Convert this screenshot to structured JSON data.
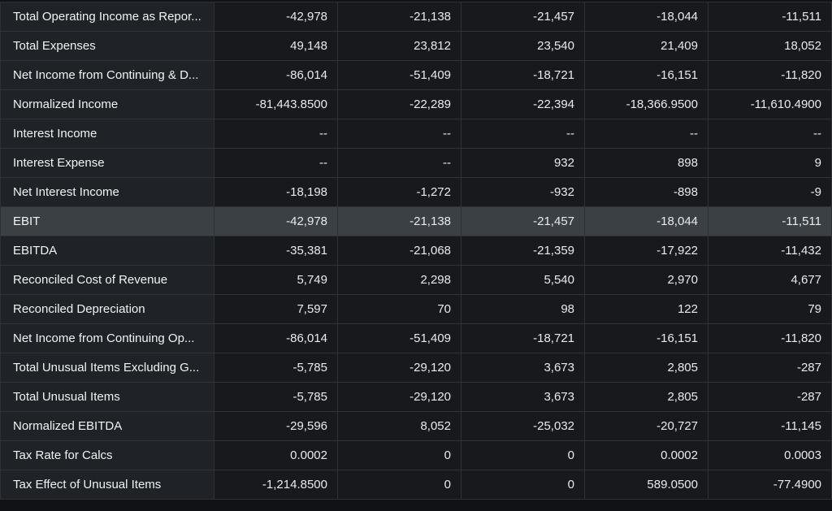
{
  "rows": [
    {
      "label": "Total Operating Income as Repor...",
      "values": [
        "-42,978",
        "-21,138",
        "-21,457",
        "-18,044",
        "-11,511"
      ],
      "highlight": false
    },
    {
      "label": "Total Expenses",
      "values": [
        "49,148",
        "23,812",
        "23,540",
        "21,409",
        "18,052"
      ],
      "highlight": false
    },
    {
      "label": "Net Income from Continuing & D...",
      "values": [
        "-86,014",
        "-51,409",
        "-18,721",
        "-16,151",
        "-11,820"
      ],
      "highlight": false
    },
    {
      "label": "Normalized Income",
      "values": [
        "-81,443.8500",
        "-22,289",
        "-22,394",
        "-18,366.9500",
        "-11,610.4900"
      ],
      "highlight": false
    },
    {
      "label": "Interest Income",
      "values": [
        "--",
        "--",
        "--",
        "--",
        "--"
      ],
      "highlight": false
    },
    {
      "label": "Interest Expense",
      "values": [
        "--",
        "--",
        "932",
        "898",
        "9"
      ],
      "highlight": false
    },
    {
      "label": "Net Interest Income",
      "values": [
        "-18,198",
        "-1,272",
        "-932",
        "-898",
        "-9"
      ],
      "highlight": false
    },
    {
      "label": "EBIT",
      "values": [
        "-42,978",
        "-21,138",
        "-21,457",
        "-18,044",
        "-11,511"
      ],
      "highlight": true
    },
    {
      "label": "EBITDA",
      "values": [
        "-35,381",
        "-21,068",
        "-21,359",
        "-17,922",
        "-11,432"
      ],
      "highlight": false
    },
    {
      "label": "Reconciled Cost of Revenue",
      "values": [
        "5,749",
        "2,298",
        "5,540",
        "2,970",
        "4,677"
      ],
      "highlight": false
    },
    {
      "label": "Reconciled Depreciation",
      "values": [
        "7,597",
        "70",
        "98",
        "122",
        "79"
      ],
      "highlight": false
    },
    {
      "label": "Net Income from Continuing Op...",
      "values": [
        "-86,014",
        "-51,409",
        "-18,721",
        "-16,151",
        "-11,820"
      ],
      "highlight": false
    },
    {
      "label": "Total Unusual Items Excluding G...",
      "values": [
        "-5,785",
        "-29,120",
        "3,673",
        "2,805",
        "-287"
      ],
      "highlight": false
    },
    {
      "label": "Total Unusual Items",
      "values": [
        "-5,785",
        "-29,120",
        "3,673",
        "2,805",
        "-287"
      ],
      "highlight": false
    },
    {
      "label": "Normalized EBITDA",
      "values": [
        "-29,596",
        "8,052",
        "-25,032",
        "-20,727",
        "-11,145"
      ],
      "highlight": false
    },
    {
      "label": "Tax Rate for Calcs",
      "values": [
        "0.0002",
        "0",
        "0",
        "0.0002",
        "0.0003"
      ],
      "highlight": false
    },
    {
      "label": "Tax Effect of Unusual Items",
      "values": [
        "-1,214.8500",
        "0",
        "0",
        "589.0500",
        "-77.4900"
      ],
      "highlight": false
    }
  ]
}
